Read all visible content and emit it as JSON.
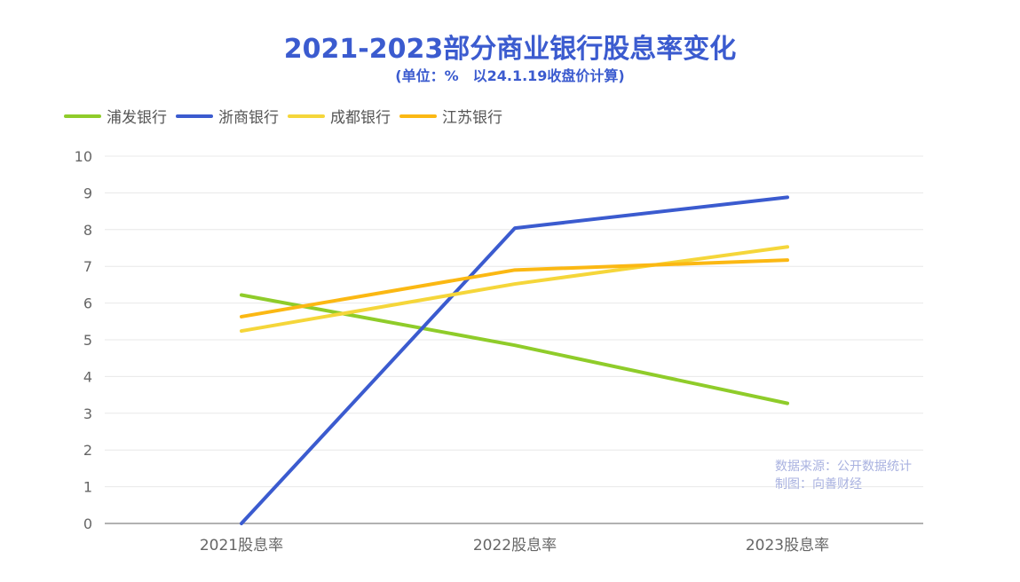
{
  "title": "2021-2023部分商业银行股息率变化",
  "subtitle": "(单位：%　以24.1.19收盘价计算)",
  "source_lines": [
    "数据来源：公开数据统计",
    "制图：向善财经"
  ],
  "chart_data": {
    "type": "line",
    "categories": [
      "2021股息率",
      "2022股息率",
      "2023股息率"
    ],
    "series": [
      {
        "name": "浦发银行",
        "color": "#8fcc2a",
        "values": [
          6.22,
          4.85,
          3.27
        ]
      },
      {
        "name": "浙商银行",
        "color": "#3b5bcf",
        "values": [
          0,
          8.04,
          8.88
        ]
      },
      {
        "name": "成都银行",
        "color": "#f5d63a",
        "values": [
          5.24,
          6.52,
          7.53
        ]
      },
      {
        "name": "江苏银行",
        "color": "#fbb813",
        "values": [
          5.63,
          6.9,
          7.17
        ]
      }
    ],
    "yticks": [
      "0",
      "1",
      "2",
      "3",
      "4",
      "5",
      "6",
      "7",
      "8",
      "9",
      "10"
    ],
    "ylim": [
      0,
      10
    ],
    "grid": true,
    "legend_position": "top-left"
  }
}
